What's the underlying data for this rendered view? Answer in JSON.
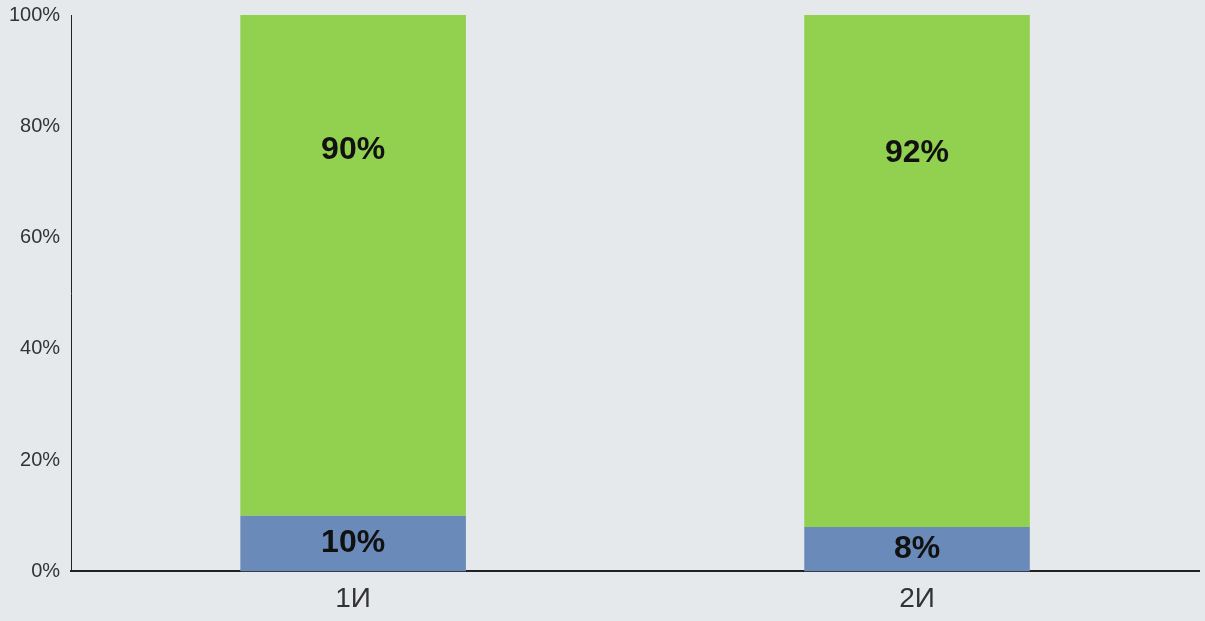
{
  "chart_data": {
    "type": "bar",
    "categories": [
      "1И",
      "2И"
    ],
    "series": [
      {
        "color": "#6a8bb9",
        "values": [
          10,
          8
        ],
        "value_labels": [
          "10%",
          "8%"
        ]
      },
      {
        "color": "#92d050",
        "values": [
          90,
          92
        ],
        "value_labels": [
          "90%",
          "92%"
        ]
      }
    ],
    "stacked": true,
    "data_labels": true,
    "grid": false,
    "ylim": [
      0,
      100
    ],
    "yticks": [
      {
        "value": 0,
        "label": "0%"
      },
      {
        "value": 20,
        "label": "20%"
      },
      {
        "value": 40,
        "label": "40%"
      },
      {
        "value": 60,
        "label": "60%"
      },
      {
        "value": 80,
        "label": "80%"
      },
      {
        "value": 100,
        "label": "100%"
      }
    ]
  }
}
